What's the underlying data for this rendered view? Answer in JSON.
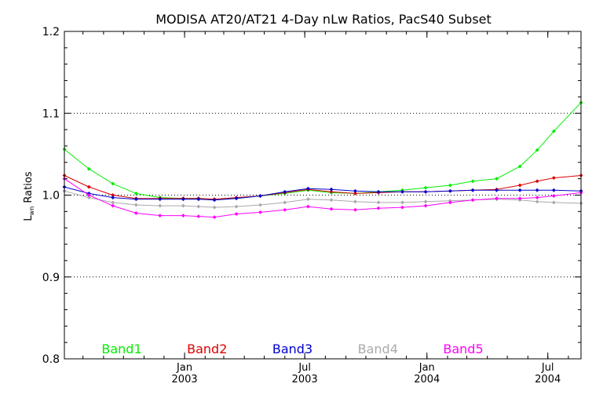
{
  "chart_data": {
    "type": "line",
    "title": "MODISA AT20/AT21 4-Day nLw Ratios, PacS40 Subset",
    "ylabel_main": "L",
    "ylabel_sub": "wn",
    "ylabel_rest": " Ratios",
    "ylim": [
      0.8,
      1.2
    ],
    "yticks": [
      {
        "value": 0.8,
        "label": "0.8"
      },
      {
        "value": 0.9,
        "label": "0.9"
      },
      {
        "value": 1.0,
        "label": "1.0"
      },
      {
        "value": 1.1,
        "label": "1.1"
      },
      {
        "value": 1.2,
        "label": "1.2"
      }
    ],
    "grid_values": [
      0.9,
      1.0,
      1.1
    ],
    "xlim": [
      "2002-07-04",
      "2004-08-20"
    ],
    "xticks": [
      {
        "date": "2003-01-01",
        "month": "Jan",
        "year": "2003"
      },
      {
        "date": "2003-07-01",
        "month": "Jul",
        "year": "2003"
      },
      {
        "date": "2004-01-01",
        "month": "Jan",
        "year": "2004"
      },
      {
        "date": "2004-07-01",
        "month": "Jul",
        "year": "2004"
      }
    ],
    "x": [
      "2002-07-04",
      "2002-08-10",
      "2002-09-15",
      "2002-10-20",
      "2002-11-25",
      "2002-12-30",
      "2003-01-22",
      "2003-02-15",
      "2003-03-20",
      "2003-04-25",
      "2003-06-01",
      "2003-07-06",
      "2003-08-10",
      "2003-09-15",
      "2003-10-20",
      "2003-11-25",
      "2003-12-30",
      "2004-02-05",
      "2004-03-10",
      "2004-04-15",
      "2004-05-20",
      "2004-06-15",
      "2004-07-10",
      "2004-08-20"
    ],
    "series": [
      {
        "name": "Band1",
        "color": "#00ee00",
        "values": [
          1.056,
          1.032,
          1.014,
          1.002,
          0.997,
          0.996,
          0.996,
          0.995,
          0.996,
          0.999,
          1.002,
          1.006,
          1.003,
          1.002,
          1.004,
          1.006,
          1.009,
          1.012,
          1.017,
          1.02,
          1.035,
          1.055,
          1.078,
          1.113
        ]
      },
      {
        "name": "Band2",
        "color": "#dd0000",
        "values": [
          1.024,
          1.01,
          1.0,
          0.996,
          0.996,
          0.996,
          0.996,
          0.995,
          0.997,
          0.999,
          1.003,
          1.007,
          1.004,
          1.002,
          1.003,
          1.004,
          1.004,
          1.005,
          1.006,
          1.007,
          1.012,
          1.017,
          1.021,
          1.024
        ]
      },
      {
        "name": "Band3",
        "color": "#0000cc",
        "values": [
          1.01,
          1.002,
          0.997,
          0.995,
          0.995,
          0.995,
          0.995,
          0.994,
          0.996,
          0.999,
          1.004,
          1.008,
          1.007,
          1.005,
          1.004,
          1.004,
          1.004,
          1.005,
          1.006,
          1.006,
          1.006,
          1.006,
          1.006,
          1.005
        ]
      },
      {
        "name": "Band4",
        "color": "#aaaaaa",
        "values": [
          1.005,
          0.997,
          0.991,
          0.988,
          0.987,
          0.987,
          0.986,
          0.985,
          0.986,
          0.988,
          0.991,
          0.995,
          0.994,
          0.992,
          0.991,
          0.991,
          0.992,
          0.993,
          0.994,
          0.995,
          0.994,
          0.992,
          0.991,
          0.99
        ]
      },
      {
        "name": "Band5",
        "color": "#ff00ff",
        "values": [
          1.02,
          1.0,
          0.987,
          0.978,
          0.975,
          0.975,
          0.974,
          0.973,
          0.977,
          0.979,
          0.982,
          0.986,
          0.983,
          0.982,
          0.984,
          0.985,
          0.987,
          0.991,
          0.994,
          0.996,
          0.996,
          0.997,
          0.999,
          1.003
        ]
      }
    ],
    "legend_position": "bottom-inside"
  }
}
